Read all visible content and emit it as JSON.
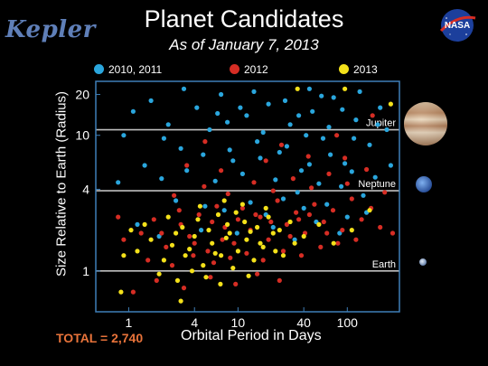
{
  "header": {
    "logo_text": "Kepler",
    "nasa_logo_text": "NASA",
    "title": "Planet Candidates",
    "subtitle": "As of January 7, 2013"
  },
  "legend": [
    {
      "label": "2010, 2011",
      "color": "#2aa6dd"
    },
    {
      "label": "2012",
      "color": "#d62d24"
    },
    {
      "label": "2013",
      "color": "#f4e11a"
    }
  ],
  "footer": {
    "total": "TOTAL = 2,740"
  },
  "chart_data": {
    "type": "scatter",
    "title": "Planet Candidates",
    "subtitle": "As of January 7, 2013",
    "xlabel": "Orbital Period in Days",
    "ylabel": "Size Relative to Earth (Radius)",
    "x_scale": "log",
    "y_scale": "log",
    "xlim": [
      0.5,
      300
    ],
    "ylim": [
      0.5,
      25
    ],
    "x_ticks": [
      1,
      4,
      10,
      40,
      100
    ],
    "y_ticks": [
      1,
      4,
      10,
      20
    ],
    "reference_lines": [
      {
        "label": "Jupiter",
        "y": 11
      },
      {
        "label": "Neptune",
        "y": 3.9
      },
      {
        "label": "Earth",
        "y": 1
      }
    ],
    "series": [
      {
        "name": "2010, 2011",
        "color": "#2aa6dd",
        "points": [
          [
            1.1,
            15
          ],
          [
            1.6,
            18
          ],
          [
            2.3,
            12
          ],
          [
            3.0,
            8
          ],
          [
            4.2,
            16
          ],
          [
            5.5,
            11
          ],
          [
            7.0,
            20
          ],
          [
            9.0,
            6.5
          ],
          [
            12,
            14
          ],
          [
            15,
            9
          ],
          [
            19,
            17
          ],
          [
            24,
            7.5
          ],
          [
            30,
            12
          ],
          [
            38,
            5.5
          ],
          [
            48,
            15
          ],
          [
            60,
            9.5
          ],
          [
            75,
            19
          ],
          [
            95,
            6.2
          ],
          [
            120,
            13
          ],
          [
            160,
            8.5
          ],
          [
            200,
            16
          ],
          [
            1.4,
            6
          ],
          [
            2.0,
            4.8
          ],
          [
            3.4,
            5.5
          ],
          [
            6.2,
            4.6
          ],
          [
            8.4,
            7.8
          ],
          [
            11,
            5.2
          ],
          [
            16,
            6.8
          ],
          [
            22,
            4.7
          ],
          [
            28,
            8.3
          ],
          [
            35,
            3.8
          ],
          [
            45,
            6.1
          ],
          [
            55,
            4.4
          ],
          [
            70,
            7.2
          ],
          [
            88,
            4.2
          ],
          [
            110,
            5.4
          ],
          [
            140,
            3.6
          ],
          [
            180,
            4.9
          ],
          [
            2.7,
            3.3
          ],
          [
            5.0,
            3.0
          ],
          [
            7.5,
            2.8
          ],
          [
            13,
            3.2
          ],
          [
            18,
            2.6
          ],
          [
            26,
            3.4
          ],
          [
            40,
            2.9
          ],
          [
            65,
            3.1
          ],
          [
            100,
            2.5
          ],
          [
            150,
            2.7
          ],
          [
            1.2,
            2.2
          ],
          [
            1.9,
            1.8
          ],
          [
            4.6,
            2.0
          ],
          [
            9.8,
            1.9
          ],
          [
            21,
            2.1
          ],
          [
            33,
            1.7
          ],
          [
            52,
            2.3
          ],
          [
            85,
            1.9
          ],
          [
            3.2,
            22
          ],
          [
            14,
            21
          ],
          [
            45,
            22
          ],
          [
            130,
            21
          ],
          [
            230,
            11
          ],
          [
            250,
            6
          ],
          [
            0.9,
            10
          ],
          [
            0.8,
            4.5
          ],
          [
            2.1,
            9.5
          ],
          [
            4.8,
            7.2
          ],
          [
            8.0,
            12.5
          ],
          [
            17,
            10.5
          ],
          [
            27,
            18
          ],
          [
            42,
            10
          ],
          [
            68,
            11.5
          ],
          [
            115,
            9.5
          ],
          [
            190,
            12
          ],
          [
            6.5,
            14.5
          ],
          [
            10.5,
            16
          ],
          [
            36,
            14
          ],
          [
            58,
            19.5
          ],
          [
            90,
            15.5
          ]
        ]
      },
      {
        "name": "2012",
        "color": "#d62d24",
        "points": [
          [
            1.3,
            1.9
          ],
          [
            1.7,
            2.4
          ],
          [
            2.2,
            1.5
          ],
          [
            2.9,
            2.8
          ],
          [
            3.6,
            1.8
          ],
          [
            4.4,
            2.6
          ],
          [
            5.3,
            1.4
          ],
          [
            6.4,
            3.0
          ],
          [
            7.6,
            2.1
          ],
          [
            9.2,
            1.6
          ],
          [
            11,
            2.9
          ],
          [
            13,
            2.0
          ],
          [
            16,
            2.5
          ],
          [
            19,
            1.7
          ],
          [
            23,
            3.3
          ],
          [
            28,
            2.2
          ],
          [
            34,
            2.7
          ],
          [
            41,
            1.9
          ],
          [
            50,
            3.1
          ],
          [
            61,
            2.3
          ],
          [
            74,
            2.8
          ],
          [
            90,
            2.0
          ],
          [
            110,
            3.4
          ],
          [
            135,
            2.4
          ],
          [
            165,
            2.9
          ],
          [
            200,
            2.1
          ],
          [
            1.5,
            1.2
          ],
          [
            2.5,
            1.1
          ],
          [
            3.9,
            1.3
          ],
          [
            6.0,
            1.15
          ],
          [
            8.5,
            1.25
          ],
          [
            12,
            1.35
          ],
          [
            17,
            1.2
          ],
          [
            26,
            1.4
          ],
          [
            38,
            1.3
          ],
          [
            57,
            1.5
          ],
          [
            82,
            1.6
          ],
          [
            120,
            1.7
          ],
          [
            1.8,
            0.85
          ],
          [
            3.2,
            0.75
          ],
          [
            5.6,
            0.9
          ],
          [
            9.5,
            0.8
          ],
          [
            15,
            0.95
          ],
          [
            24,
            0.85
          ],
          [
            2.6,
            3.6
          ],
          [
            4.9,
            4.2
          ],
          [
            8.1,
            3.7
          ],
          [
            14,
            4.5
          ],
          [
            21,
            3.9
          ],
          [
            32,
            4.8
          ],
          [
            47,
            4.1
          ],
          [
            68,
            5.2
          ],
          [
            100,
            4.4
          ],
          [
            150,
            5.6
          ],
          [
            220,
            3.8
          ],
          [
            3.4,
            6.0
          ],
          [
            7.0,
            5.5
          ],
          [
            18,
            6.5
          ],
          [
            44,
            7.0
          ],
          [
            95,
            6.8
          ],
          [
            5.0,
            9.0
          ],
          [
            25,
            8.5
          ],
          [
            80,
            10
          ],
          [
            170,
            14
          ],
          [
            0.9,
            1.7
          ],
          [
            0.8,
            2.5
          ],
          [
            1.1,
            0.7
          ],
          [
            260,
            1.9
          ],
          [
            2.0,
            1.9
          ],
          [
            3.0,
            2.2
          ],
          [
            4.0,
            1.6
          ],
          [
            5.8,
            2.3
          ],
          [
            7.2,
            1.7
          ],
          [
            10,
            2.4
          ],
          [
            14.5,
            2.6
          ],
          [
            20,
            2.3
          ],
          [
            30,
            1.8
          ],
          [
            36,
            2.4
          ],
          [
            45,
            2.6
          ],
          [
            65,
            1.9
          ]
        ]
      },
      {
        "name": "2013",
        "color": "#f4e11a",
        "points": [
          [
            1.2,
            1.4
          ],
          [
            1.6,
            1.7
          ],
          [
            2.1,
            1.2
          ],
          [
            2.7,
            1.9
          ],
          [
            3.3,
            1.3
          ],
          [
            4.0,
            1.8
          ],
          [
            4.8,
            1.1
          ],
          [
            5.8,
            1.6
          ],
          [
            7.0,
            1.3
          ],
          [
            8.4,
            1.9
          ],
          [
            10,
            1.4
          ],
          [
            12,
            1.7
          ],
          [
            14,
            1.2
          ],
          [
            17,
            1.5
          ],
          [
            21,
            1.9
          ],
          [
            26,
            1.3
          ],
          [
            1.4,
            2.2
          ],
          [
            2.3,
            2.5
          ],
          [
            3.1,
            2.1
          ],
          [
            4.3,
            2.4
          ],
          [
            5.4,
            2.0
          ],
          [
            6.6,
            2.6
          ],
          [
            8.0,
            2.2
          ],
          [
            9.6,
            2.7
          ],
          [
            11.5,
            2.3
          ],
          [
            15,
            2.1
          ],
          [
            19,
            2.5
          ],
          [
            24,
            2.0
          ],
          [
            30,
            2.3
          ],
          [
            1.9,
            0.95
          ],
          [
            2.8,
            0.85
          ],
          [
            3.8,
            1.0
          ],
          [
            5.1,
            0.9
          ],
          [
            6.9,
            0.8
          ],
          [
            9.0,
            1.05
          ],
          [
            12.5,
            0.92
          ],
          [
            0.85,
            0.7
          ],
          [
            0.9,
            1.3
          ],
          [
            1.05,
            2.0
          ],
          [
            4.5,
            3.0
          ],
          [
            7.5,
            3.3
          ],
          [
            11,
            3.1
          ],
          [
            18,
            2.9
          ],
          [
            40,
            1.8
          ],
          [
            55,
            2.2
          ],
          [
            75,
            1.6
          ],
          [
            110,
            2.0
          ],
          [
            2.5,
            1.55
          ],
          [
            3.6,
            1.45
          ],
          [
            6.2,
            1.35
          ],
          [
            7.8,
            1.75
          ],
          [
            13,
            1.95
          ],
          [
            16,
            1.6
          ],
          [
            22,
            1.4
          ],
          [
            33,
            1.6
          ],
          [
            3.0,
            0.6
          ],
          [
            160,
            2.8
          ],
          [
            95,
            22
          ],
          [
            35,
            22
          ],
          [
            250,
            17
          ]
        ]
      }
    ]
  }
}
